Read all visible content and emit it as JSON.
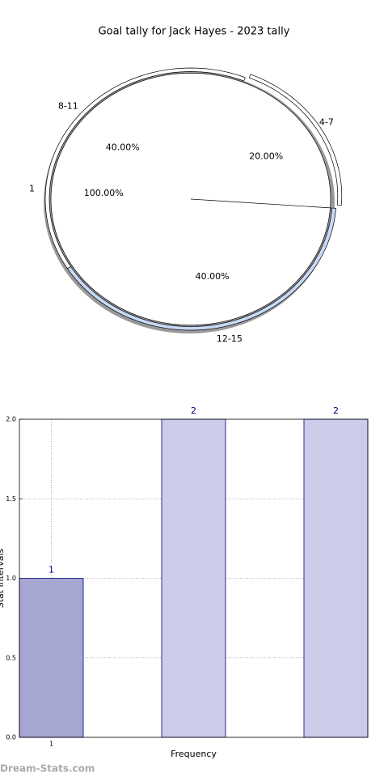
{
  "chart_data": [
    {
      "type": "pie",
      "title": "Goal tally for Jack Hayes - 2023 tally",
      "categories": [
        "4-7",
        "8-11",
        "12-15"
      ],
      "values": [
        20,
        40,
        40
      ],
      "value_labels": [
        "20.00%",
        "40.00%",
        "40.00%"
      ],
      "colors": [
        "#ffffff",
        "#ffffff",
        "#c6d9f7"
      ],
      "explode": [
        true,
        false,
        false
      ],
      "inner": {
        "categories": [
          "1"
        ],
        "values": [
          100
        ],
        "value_labels": [
          "100.00%"
        ],
        "colors": [
          "#ffffff"
        ]
      }
    },
    {
      "type": "bar",
      "categories": [
        "1",
        null,
        null
      ],
      "values": [
        1,
        2,
        2
      ],
      "colors": [
        "#a6a6d2",
        "#ccccea",
        "#ccccea"
      ],
      "xlabel": "Frequency",
      "ylabel": "Stat intervals",
      "ylim": [
        0,
        2
      ],
      "yticks": [
        {
          "value": 0,
          "label": "0.0"
        },
        {
          "value": 0.5,
          "label": "0.5"
        },
        {
          "value": 1,
          "label": "1.0"
        },
        {
          "value": 1.5,
          "label": "1.5"
        },
        {
          "value": 2,
          "label": "2.0"
        }
      ],
      "grid": true
    }
  ],
  "watermark": "Dream-Stats.com"
}
